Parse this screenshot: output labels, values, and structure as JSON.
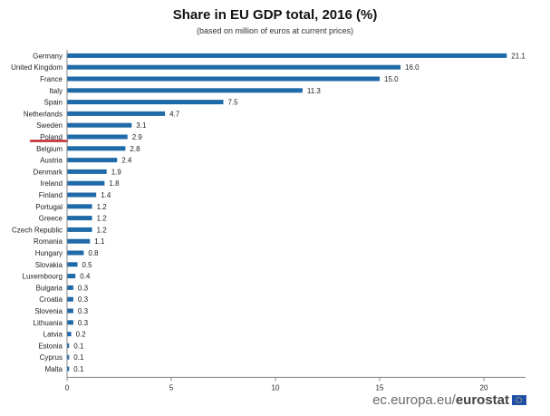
{
  "chart_data": {
    "type": "bar",
    "orientation": "horizontal",
    "title": "Share in EU GDP total, 2016 (%)",
    "subtitle": "(based on million of euros at current prices)",
    "categories": [
      "Germany",
      "United Kingdom",
      "France",
      "Italy",
      "Spain",
      "Netherlands",
      "Sweden",
      "Poland",
      "Belgium",
      "Austria",
      "Denmark",
      "Ireland",
      "Finland",
      "Portugal",
      "Greece",
      "Czech Republic",
      "Romania",
      "Hungary",
      "Slovakia",
      "Luxembourg",
      "Bulgaria",
      "Croatia",
      "Slovenia",
      "Lithuania",
      "Latvia",
      "Estonia",
      "Cyprus",
      "Malta"
    ],
    "values": [
      21.1,
      16.0,
      15.0,
      11.3,
      7.5,
      4.7,
      3.1,
      2.9,
      2.8,
      2.4,
      1.9,
      1.8,
      1.4,
      1.2,
      1.2,
      1.2,
      1.1,
      0.8,
      0.5,
      0.4,
      0.3,
      0.3,
      0.3,
      0.3,
      0.2,
      0.1,
      0.1,
      0.1
    ],
    "data_labels": [
      "21.1",
      "16.0",
      "15.0",
      "11.3",
      "7.5",
      "4.7",
      "3.1",
      "2.9",
      "2.8",
      "2.4",
      "1.9",
      "1.8",
      "1.4",
      "1.2",
      "1.2",
      "1.2",
      "1.1",
      "0.8",
      "0.5",
      "0.4",
      "0.3",
      "0.3",
      "0.3",
      "0.3",
      "0.2",
      "0.1",
      "0.1",
      "0.1"
    ],
    "xlim": [
      0,
      22
    ],
    "xticks": [
      0,
      5,
      10,
      15,
      20
    ],
    "bar_color": "#1f6aa8",
    "highlight": {
      "category": "Poland",
      "color": "#c1272d"
    },
    "grid": false
  },
  "footer": {
    "site": "ec.europa.eu/",
    "brand": "eurostat"
  }
}
